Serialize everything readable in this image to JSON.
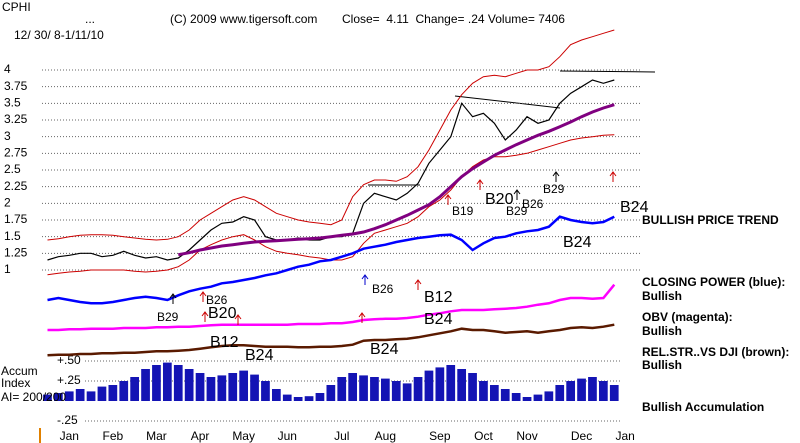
{
  "chart_data": {
    "type": "line",
    "title": "CPHI",
    "dots": "...",
    "date_range": "12/ 30/ 8-1/11/10",
    "copyright": "(C) 2009 www.tigersoft.com",
    "quote": "Close=  4.11  Change= .24 Volume= 7406",
    "categories": [
      null,
      null,
      "Jan",
      null,
      null,
      null,
      "Feb",
      null,
      null,
      null,
      "Mar",
      null,
      null,
      null,
      "Apr",
      null,
      null,
      null,
      "May",
      null,
      null,
      null,
      "Jun",
      null,
      null,
      null,
      null,
      "Jul",
      null,
      null,
      null,
      "Aug",
      null,
      null,
      null,
      null,
      "Sep",
      null,
      null,
      null,
      "Oct",
      null,
      null,
      null,
      "Nov",
      null,
      null,
      null,
      null,
      "Dec",
      null,
      null,
      null,
      "Jan",
      null
    ],
    "ylim": [
      -1.325,
      4.975
    ],
    "yticks": [
      4,
      3.75,
      3.5,
      3.25,
      3,
      2.75,
      2.5,
      2.25,
      2,
      1.75,
      1.5,
      1.25,
      1
    ],
    "y2lim": [
      -0.3,
      4.95
    ],
    "y2ticks": [
      {
        "value": 0.5,
        "label": "+.50"
      },
      {
        "value": 0.25,
        "label": "+.25"
      },
      {
        "value": -0.25,
        "label": "-.25"
      }
    ],
    "grid": true,
    "series": [
      {
        "color": "#000000",
        "values": [
          1.15,
          1.2,
          1.22,
          1.25,
          1.25,
          1.2,
          1.22,
          1.28,
          1.22,
          1.18,
          1.2,
          1.15,
          1.18,
          1.3,
          1.45,
          1.6,
          1.7,
          1.72,
          1.8,
          1.75,
          1.5,
          1.45,
          1.45,
          1.48,
          1.45,
          1.45,
          1.5,
          1.5,
          1.55,
          2.0,
          2.15,
          2.1,
          2.05,
          2.15,
          2.3,
          2.6,
          2.8,
          3.0,
          3.5,
          3.3,
          3.35,
          3.2,
          2.95,
          3.1,
          3.3,
          3.2,
          3.25,
          3.5,
          3.65,
          3.75,
          3.85,
          3.8,
          3.85,
          null,
          null
        ]
      },
      {
        "color": "#cc0000",
        "values": [
          1.45,
          1.47,
          1.5,
          1.52,
          1.53,
          1.53,
          1.52,
          1.5,
          1.48,
          1.46,
          1.45,
          1.46,
          1.5,
          1.6,
          1.75,
          1.85,
          1.95,
          2.05,
          2.1,
          2.05,
          1.95,
          1.85,
          1.8,
          1.75,
          1.72,
          1.7,
          1.68,
          1.75,
          2.1,
          2.28,
          2.35,
          2.35,
          2.33,
          2.4,
          2.55,
          2.8,
          3.1,
          3.4,
          3.63,
          3.8,
          3.9,
          3.92,
          3.9,
          3.95,
          4.0,
          4.0,
          4.05,
          4.2,
          4.38,
          4.45,
          4.5,
          4.55,
          4.6,
          null,
          null
        ]
      },
      {
        "color": "#cc0000",
        "values": [
          0.93,
          0.95,
          0.97,
          0.98,
          1.0,
          1.0,
          1.0,
          1.0,
          0.98,
          0.97,
          0.98,
          1.0,
          1.05,
          1.15,
          1.3,
          1.38,
          1.45,
          1.5,
          1.53,
          1.45,
          1.35,
          1.28,
          1.25,
          1.23,
          1.2,
          1.18,
          1.15,
          1.15,
          1.2,
          1.4,
          1.55,
          1.6,
          1.65,
          1.7,
          1.8,
          1.95,
          2.05,
          2.2,
          2.4,
          2.55,
          2.65,
          2.7,
          2.7,
          2.72,
          2.75,
          2.8,
          2.85,
          2.9,
          2.95,
          2.98,
          3.0,
          3.02,
          3.03,
          null,
          null
        ]
      },
      {
        "color": "#800080",
        "values": [
          null,
          null,
          null,
          null,
          null,
          null,
          null,
          null,
          null,
          null,
          null,
          null,
          1.23,
          1.26,
          1.3,
          1.33,
          1.36,
          1.38,
          1.4,
          1.42,
          1.43,
          1.44,
          1.45,
          1.46,
          1.47,
          1.48,
          1.5,
          1.52,
          1.54,
          1.57,
          1.62,
          1.68,
          1.75,
          1.82,
          1.9,
          1.98,
          2.1,
          2.25,
          2.4,
          2.52,
          2.62,
          2.72,
          2.8,
          2.88,
          2.95,
          3.02,
          3.08,
          3.15,
          3.22,
          3.3,
          3.37,
          3.43,
          3.48,
          null,
          null
        ]
      },
      {
        "name": "CLOSING POWER (blue):",
        "status": "Bullish",
        "color": "#0000ff",
        "values": [
          0.55,
          0.58,
          0.55,
          0.52,
          0.5,
          0.5,
          0.52,
          0.55,
          0.58,
          0.6,
          0.58,
          0.55,
          0.62,
          0.68,
          0.72,
          0.75,
          0.8,
          0.82,
          0.85,
          0.88,
          0.92,
          0.95,
          1.0,
          1.05,
          1.08,
          1.13,
          1.15,
          1.2,
          1.25,
          1.32,
          1.35,
          1.38,
          1.42,
          1.45,
          1.48,
          1.5,
          1.52,
          1.53,
          1.45,
          1.3,
          1.4,
          1.48,
          1.5,
          1.55,
          1.58,
          1.6,
          1.65,
          1.8,
          1.75,
          1.72,
          1.7,
          1.72,
          1.8,
          null,
          null
        ]
      },
      {
        "name": "OBV (magenta):",
        "status": "Bullish",
        "color": "#ff00ff",
        "values": [
          0.1,
          0.1,
          0.11,
          0.11,
          0.12,
          0.12,
          0.12,
          0.13,
          0.13,
          0.13,
          0.14,
          0.14,
          0.15,
          0.15,
          0.16,
          0.17,
          0.18,
          0.18,
          0.18,
          0.18,
          0.18,
          0.18,
          0.18,
          0.19,
          0.19,
          0.19,
          0.2,
          0.2,
          0.22,
          0.25,
          0.26,
          0.27,
          0.27,
          0.28,
          0.3,
          0.33,
          0.35,
          0.38,
          0.4,
          0.4,
          0.4,
          0.41,
          0.42,
          0.43,
          0.45,
          0.48,
          0.5,
          0.55,
          0.58,
          0.58,
          0.57,
          0.58,
          0.78,
          null,
          null
        ]
      },
      {
        "name": "REL.STR..VS DJI (brown):",
        "status": "Bullish",
        "color": "#5a1a00",
        "values": [
          -0.28,
          -0.27,
          -0.27,
          -0.26,
          -0.26,
          -0.25,
          -0.25,
          -0.24,
          -0.24,
          -0.23,
          -0.22,
          -0.22,
          -0.21,
          -0.2,
          -0.18,
          -0.16,
          -0.14,
          -0.13,
          -0.13,
          -0.14,
          -0.15,
          -0.15,
          -0.15,
          -0.16,
          -0.16,
          -0.15,
          -0.15,
          -0.14,
          -0.12,
          -0.06,
          -0.05,
          -0.05,
          -0.04,
          -0.03,
          -0.01,
          0.02,
          0.05,
          0.08,
          0.12,
          0.1,
          0.1,
          0.08,
          0.06,
          0.07,
          0.08,
          0.06,
          0.08,
          0.1,
          0.13,
          0.14,
          0.13,
          0.15,
          0.18,
          null,
          null
        ]
      },
      {
        "name": "Accum Index",
        "status": "AI= 200/200",
        "style": "bar",
        "axis": "y2",
        "color": "#1414b4",
        "values": [
          0.08,
          0.1,
          0.12,
          0.15,
          0.12,
          0.18,
          0.2,
          0.25,
          0.3,
          0.4,
          0.45,
          0.48,
          0.45,
          0.4,
          0.35,
          0.3,
          0.32,
          0.35,
          0.38,
          0.33,
          0.25,
          0.15,
          0.08,
          0.05,
          0.06,
          0.1,
          0.2,
          0.3,
          0.35,
          0.32,
          0.3,
          0.28,
          0.25,
          0.22,
          0.3,
          0.38,
          0.42,
          0.45,
          0.4,
          0.35,
          0.25,
          0.2,
          0.15,
          0.1,
          0.05,
          0.08,
          0.12,
          0.2,
          0.25,
          0.28,
          0.3,
          0.25,
          0.2,
          null,
          null
        ]
      }
    ],
    "notes": [
      "BULLISH PRICE TREND",
      "Bullish Accumulation"
    ],
    "annotations": [
      "B24",
      "B24",
      "B29",
      "B26",
      "B20",
      "B29",
      "B19",
      "B26",
      "B12",
      "B24",
      "B29",
      "B26",
      "B20",
      "B12",
      "B24",
      "B24"
    ]
  }
}
